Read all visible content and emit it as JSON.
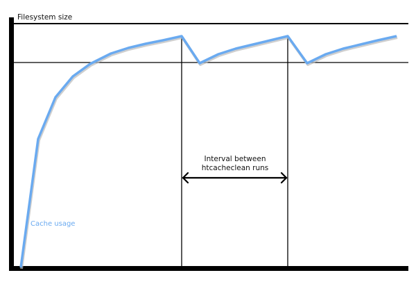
{
  "diagram": {
    "y_axis_label": "Filesystem size",
    "interval_label_line1": "Interval between",
    "interval_label_line2": "htcacheclean runs",
    "series_label": "Cache usage",
    "colors": {
      "cache_line": "#6aaaf0",
      "axes": "#000000",
      "shadow": "#bbbbbb"
    }
  }
}
